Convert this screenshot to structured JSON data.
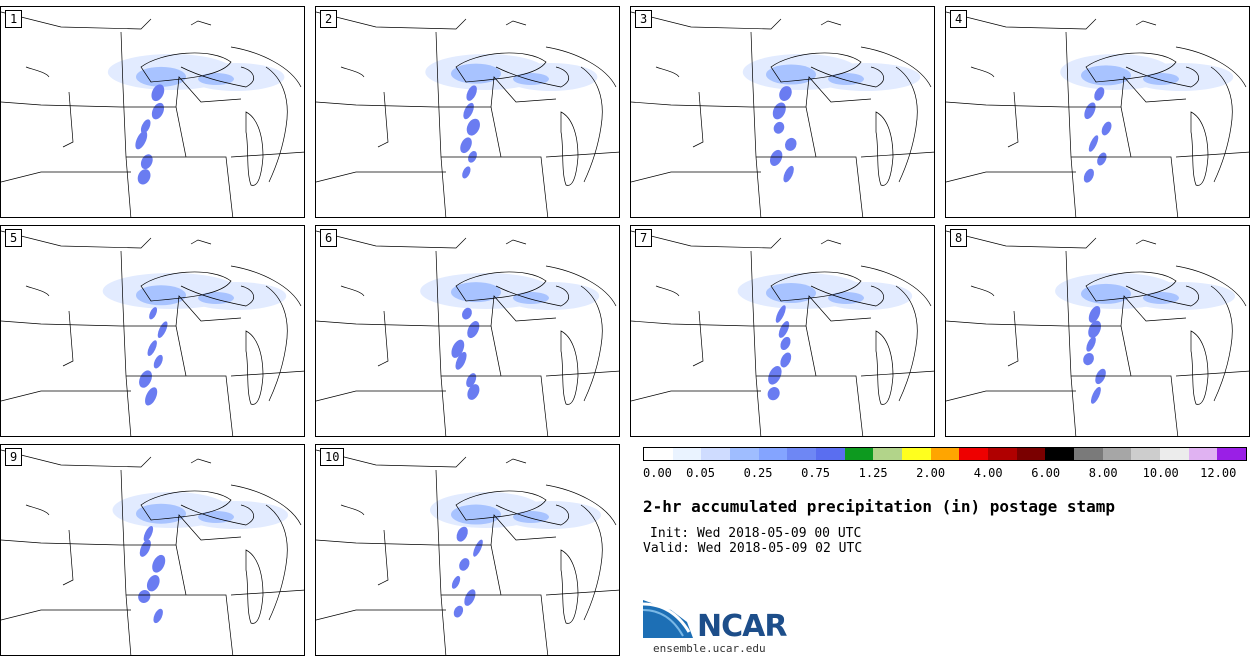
{
  "panels": [
    {
      "number": "1"
    },
    {
      "number": "2"
    },
    {
      "number": "3"
    },
    {
      "number": "4"
    },
    {
      "number": "5"
    },
    {
      "number": "6"
    },
    {
      "number": "7"
    },
    {
      "number": "8"
    },
    {
      "number": "9"
    },
    {
      "number": "10"
    }
  ],
  "colorbar": {
    "colors": [
      "#ffffff",
      "#eaf3ff",
      "#cfdcff",
      "#9fbdff",
      "#84a4ff",
      "#6e87f4",
      "#5a6ef0",
      "#0d9a1f",
      "#b2d48a",
      "#ffff1e",
      "#ffa500",
      "#ee0000",
      "#b00000",
      "#7a0000",
      "#000000",
      "#7a7a7a",
      "#a6a6a6",
      "#cdcdcd",
      "#ececec",
      "#e0b2f2",
      "#9a1fe6"
    ],
    "labels": [
      "0.00",
      "0.05",
      "0.25",
      "0.75",
      "1.25",
      "2.00",
      "4.00",
      "6.00",
      "8.00",
      "10.00",
      "12.00"
    ]
  },
  "title": "2-hr accumulated precipitation (in) postage stamp",
  "init": "Init: Wed 2018-05-09 00 UTC",
  "valid": "Valid: Wed 2018-05-09 02 UTC",
  "logo": {
    "text": "NCAR",
    "url": "ensemble.ucar.edu",
    "color": "#1d4e8a"
  },
  "map": {
    "land_line_color": "#000000",
    "precip_light": "#dfe9ff",
    "precip_mid": "#9fbdff",
    "precip_heavy": "#5a6ef0"
  }
}
